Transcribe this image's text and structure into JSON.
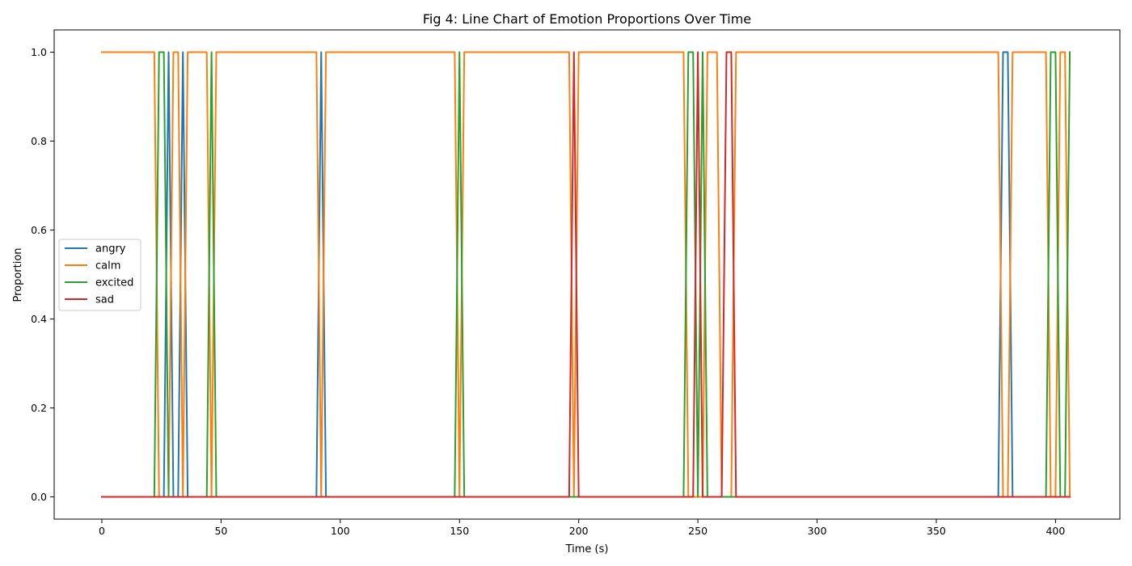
{
  "chart_data": {
    "type": "line",
    "title": "Fig 4: Line Chart of Emotion Proportions Over Time",
    "xlabel": "Time (s)",
    "ylabel": "Proportion",
    "xlim": [
      -20,
      427
    ],
    "ylim": [
      -0.05,
      1.05
    ],
    "xticks": [
      0,
      50,
      100,
      150,
      200,
      250,
      300,
      350,
      400
    ],
    "yticks": [
      0.0,
      0.2,
      0.4,
      0.6,
      0.8,
      1.0
    ],
    "xtick_labels": [
      "0",
      "50",
      "100",
      "150",
      "200",
      "250",
      "300",
      "350",
      "400"
    ],
    "ytick_labels": [
      "0.0",
      "0.2",
      "0.4",
      "0.6",
      "0.8",
      "1.0"
    ],
    "grid": false,
    "legend_position": "center-left",
    "series": [
      {
        "name": "angry",
        "color": "#1f77b4",
        "x": [
          0,
          26,
          28,
          30,
          32,
          34,
          36,
          90,
          92,
          94,
          376,
          378,
          380,
          382,
          406
        ],
        "y": [
          0,
          0,
          1,
          0,
          0,
          1,
          0,
          0,
          1,
          0,
          0,
          1,
          1,
          0,
          0
        ]
      },
      {
        "name": "calm",
        "color": "#ff7f0e",
        "x": [
          0,
          22,
          24,
          26,
          28,
          30,
          32,
          34,
          36,
          44,
          46,
          48,
          90,
          92,
          94,
          148,
          150,
          152,
          196,
          198,
          200,
          244,
          246,
          248,
          250,
          252,
          254,
          258,
          260,
          262,
          264,
          266,
          376,
          378,
          380,
          382,
          396,
          398,
          400,
          402,
          404,
          406
        ],
        "y": [
          1,
          1,
          0,
          0,
          0,
          1,
          1,
          0,
          1,
          1,
          0,
          1,
          1,
          0,
          1,
          1,
          0,
          1,
          1,
          0,
          1,
          1,
          0,
          0,
          0,
          0,
          1,
          1,
          0,
          0,
          0,
          1,
          1,
          0,
          0,
          1,
          1,
          0,
          0,
          1,
          1,
          0
        ]
      },
      {
        "name": "excited",
        "color": "#2ca02c",
        "x": [
          0,
          22,
          24,
          26,
          28,
          44,
          46,
          48,
          148,
          150,
          152,
          244,
          246,
          248,
          250,
          252,
          254,
          396,
          398,
          400,
          402,
          404,
          406
        ],
        "y": [
          0,
          0,
          1,
          1,
          0,
          0,
          1,
          0,
          0,
          1,
          0,
          0,
          1,
          1,
          0,
          1,
          0,
          0,
          1,
          1,
          0,
          0,
          1
        ]
      },
      {
        "name": "sad",
        "color": "#d62728",
        "x": [
          0,
          196,
          198,
          200,
          248,
          250,
          252,
          260,
          262,
          264,
          266,
          406
        ],
        "y": [
          0,
          0,
          1,
          0,
          0,
          1,
          0,
          0,
          1,
          1,
          0,
          0
        ]
      }
    ]
  }
}
